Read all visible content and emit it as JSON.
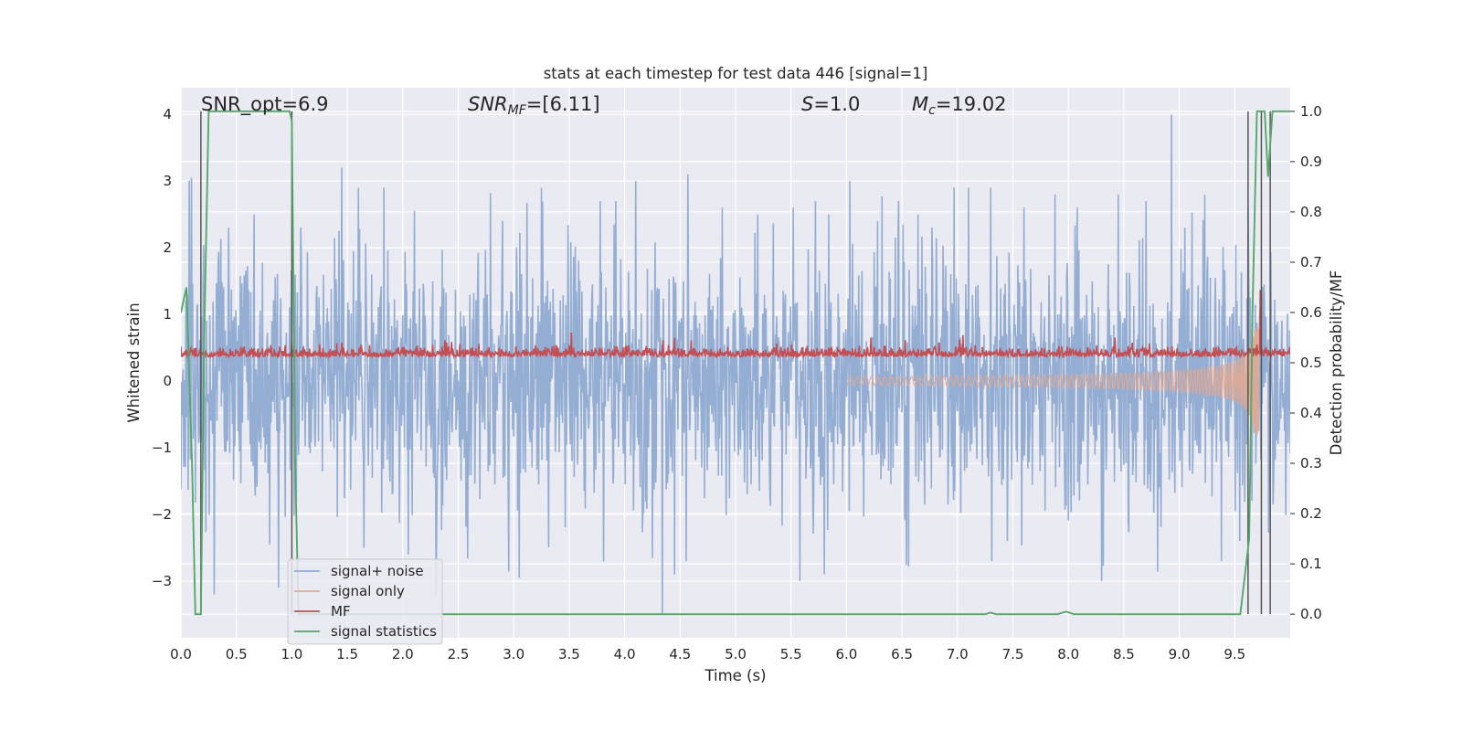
{
  "chart_data": {
    "type": "line",
    "title": "stats at each timestep for test data 446 [signal=1]",
    "xlabel": "Time (s)",
    "ylabel": "Whitened strain",
    "ylabel_right": "Detection probability/MF",
    "xlim": [
      0,
      10
    ],
    "ylim": [
      -3.85,
      4.4
    ],
    "ylim_right": [
      -0.047,
      1.047
    ],
    "x_ticks": [
      "0.0",
      "0.5",
      "1.0",
      "1.5",
      "2.0",
      "2.5",
      "3.0",
      "3.5",
      "4.0",
      "4.5",
      "5.0",
      "5.5",
      "6.0",
      "6.5",
      "7.0",
      "7.5",
      "8.0",
      "8.5",
      "9.0",
      "9.5"
    ],
    "y_ticks": [
      "−3",
      "−2",
      "−1",
      "0",
      "1",
      "2",
      "3",
      "4"
    ],
    "y_right_ticks": [
      "0.0",
      "0.1",
      "0.2",
      "0.3",
      "0.4",
      "0.5",
      "0.6",
      "0.7",
      "0.8",
      "0.9",
      "1.0"
    ],
    "grid": true,
    "annotations": {
      "snr_opt": "SNR_opt=6.9",
      "snr_mf_sym": "SNR",
      "snr_mf_sub": "MF",
      "snr_mf_val": "=[6.11]",
      "s_sym": "S",
      "s_val": "=1.0",
      "mc_sym": "M",
      "mc_sub": "c",
      "mc_val": "=19.02"
    },
    "legend": {
      "position": "lower left",
      "entries": [
        "signal+ noise",
        "signal only",
        "MF",
        "signal statistics"
      ]
    },
    "colors": {
      "signal_noise": "#8faad1",
      "signal_only": "#e8a88c",
      "mf": "#c44e52",
      "signal_statistics": "#55a868",
      "vlines": "#555555",
      "background": "#eaeaf2",
      "grid": "#ffffff"
    },
    "series": [
      {
        "name": "signal statistics",
        "axis": "right",
        "x": [
          0.0,
          0.05,
          0.1,
          0.13,
          0.18,
          0.21,
          0.25,
          0.98,
          1.0,
          1.03,
          1.06,
          2.0,
          3.0,
          4.0,
          5.0,
          6.0,
          7.0,
          7.25,
          7.3,
          7.35,
          7.9,
          7.98,
          8.05,
          8.5,
          9.0,
          9.55,
          9.63,
          9.66,
          9.7,
          9.74,
          9.77,
          9.8,
          9.84,
          9.88,
          9.9,
          10.0
        ],
        "y": [
          0.6,
          0.65,
          0.3,
          0.0,
          0.0,
          0.55,
          1.0,
          1.0,
          0.98,
          0.3,
          0.0,
          0.0,
          0.0,
          0.0,
          0.0,
          0.0,
          0.0,
          0.0,
          0.003,
          0.0,
          0.0,
          0.005,
          0.0,
          0.0,
          0.0,
          0.0,
          0.15,
          0.6,
          1.0,
          1.0,
          1.0,
          0.87,
          1.0,
          1.0,
          1.0,
          1.0
        ]
      },
      {
        "name": "signal+ noise",
        "axis": "left",
        "description_range": [
          -3.5,
          4.0
        ],
        "x": [
          0.3,
          0.43,
          0.66,
          0.88,
          1.08,
          1.45,
          1.83,
          2.05,
          2.3,
          2.9,
          3.05,
          3.25,
          3.78,
          3.92,
          4.1,
          4.45,
          4.57,
          4.88,
          5.2,
          5.52,
          5.58,
          5.72,
          5.84,
          6.03,
          6.28,
          6.47,
          6.77,
          6.97,
          7.1,
          7.3,
          7.45,
          7.6,
          7.88,
          8.08,
          8.3,
          8.45,
          8.7,
          8.93,
          9.05,
          9.38,
          9.62
        ],
        "y": [
          -3.2,
          2.3,
          2.5,
          -3.1,
          2.3,
          3.2,
          2.9,
          -2.6,
          -3.2,
          2.4,
          -2.95,
          2.9,
          2.7,
          2.7,
          3.0,
          -2.9,
          3.1,
          2.6,
          2.5,
          2.6,
          -3.0,
          2.7,
          2.5,
          3.0,
          2.4,
          2.7,
          2.3,
          2.9,
          2.9,
          2.9,
          -2.4,
          2.6,
          2.8,
          2.6,
          -3.0,
          2.8,
          2.7,
          4.0,
          2.3,
          -2.7,
          2.6
        ]
      },
      {
        "name": "signal only",
        "axis": "left",
        "description_range": [
          -0.9,
          0.8
        ]
      },
      {
        "name": "MF",
        "axis": "right",
        "description_range": [
          0.475,
          0.71
        ],
        "x": [
          0.35,
          0.81,
          1.0,
          1.45,
          2.38,
          3.52,
          4.45,
          4.6,
          6.22,
          6.53,
          7.05,
          8.42,
          9.73
        ],
        "y": [
          0.53,
          0.535,
          0.54,
          0.54,
          0.545,
          0.56,
          0.55,
          0.545,
          0.55,
          0.545,
          0.555,
          0.55,
          0.645
        ]
      }
    ],
    "vlines_x": [
      0.18,
      1.0,
      9.62,
      9.74,
      9.82
    ]
  }
}
